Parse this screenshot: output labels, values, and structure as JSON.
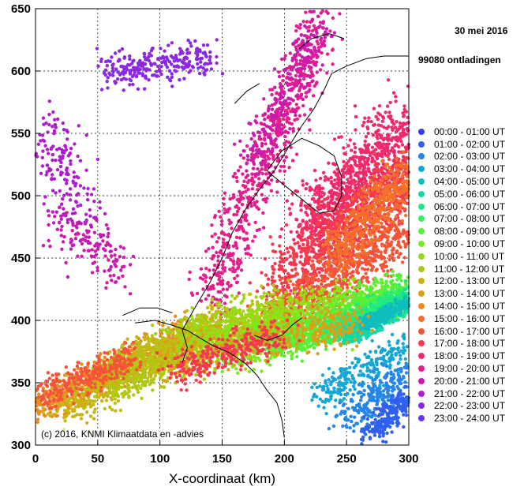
{
  "header": {
    "date": "30 mei 2016",
    "count": "99080 ontladingen"
  },
  "credit": "(c) 2016, KNMI Klimaatdata en -advies",
  "legend": [
    {
      "label": "00:00 - 01:00 UT",
      "color": "#3a3af5"
    },
    {
      "label": "01:00 - 02:00 UT",
      "color": "#2f60f0"
    },
    {
      "label": "02:00 - 03:00 UT",
      "color": "#2486e8"
    },
    {
      "label": "03:00 - 04:00 UT",
      "color": "#14a6d6"
    },
    {
      "label": "04:00 - 05:00 UT",
      "color": "#10bdbd"
    },
    {
      "label": "05:00 - 06:00 UT",
      "color": "#14d6a6"
    },
    {
      "label": "06:00 - 07:00 UT",
      "color": "#1fe886"
    },
    {
      "label": "07:00 - 08:00 UT",
      "color": "#35f060"
    },
    {
      "label": "08:00 - 09:00 UT",
      "color": "#55f03a"
    },
    {
      "label": "09:00 - 10:00 UT",
      "color": "#78ea22"
    },
    {
      "label": "10:00 - 11:00 UT",
      "color": "#96dc14"
    },
    {
      "label": "11:00 - 12:00 UT",
      "color": "#b0c812"
    },
    {
      "label": "12:00 - 13:00 UT",
      "color": "#c8b414"
    },
    {
      "label": "13:00 - 14:00 UT",
      "color": "#dca018"
    },
    {
      "label": "14:00 - 15:00 UT",
      "color": "#ea8a20"
    },
    {
      "label": "15:00 - 16:00 UT",
      "color": "#f2702a"
    },
    {
      "label": "16:00 - 17:00 UT",
      "color": "#f65438"
    },
    {
      "label": "17:00 - 18:00 UT",
      "color": "#f53a50"
    },
    {
      "label": "18:00 - 19:00 UT",
      "color": "#ef2a6c"
    },
    {
      "label": "19:00 - 20:00 UT",
      "color": "#e41e8c"
    },
    {
      "label": "20:00 - 21:00 UT",
      "color": "#cc1aae"
    },
    {
      "label": "21:00 - 22:00 UT",
      "color": "#ae1ccc"
    },
    {
      "label": "22:00 - 23:00 UT",
      "color": "#8a28e2"
    },
    {
      "label": "23:00 - 24:00 UT",
      "color": "#6636f0"
    }
  ],
  "axes": {
    "x_title": "X-coordinaat (km)",
    "x_ticks": [
      "0",
      "50",
      "100",
      "150",
      "200",
      "250",
      "300"
    ],
    "y_ticks": [
      "300",
      "350",
      "400",
      "450",
      "500",
      "550",
      "600",
      "650"
    ],
    "x_range": [
      0,
      300
    ],
    "y_range": [
      300,
      650
    ],
    "grid": true
  },
  "map": {
    "background": "#ffffff",
    "border_color": "#000000"
  }
}
